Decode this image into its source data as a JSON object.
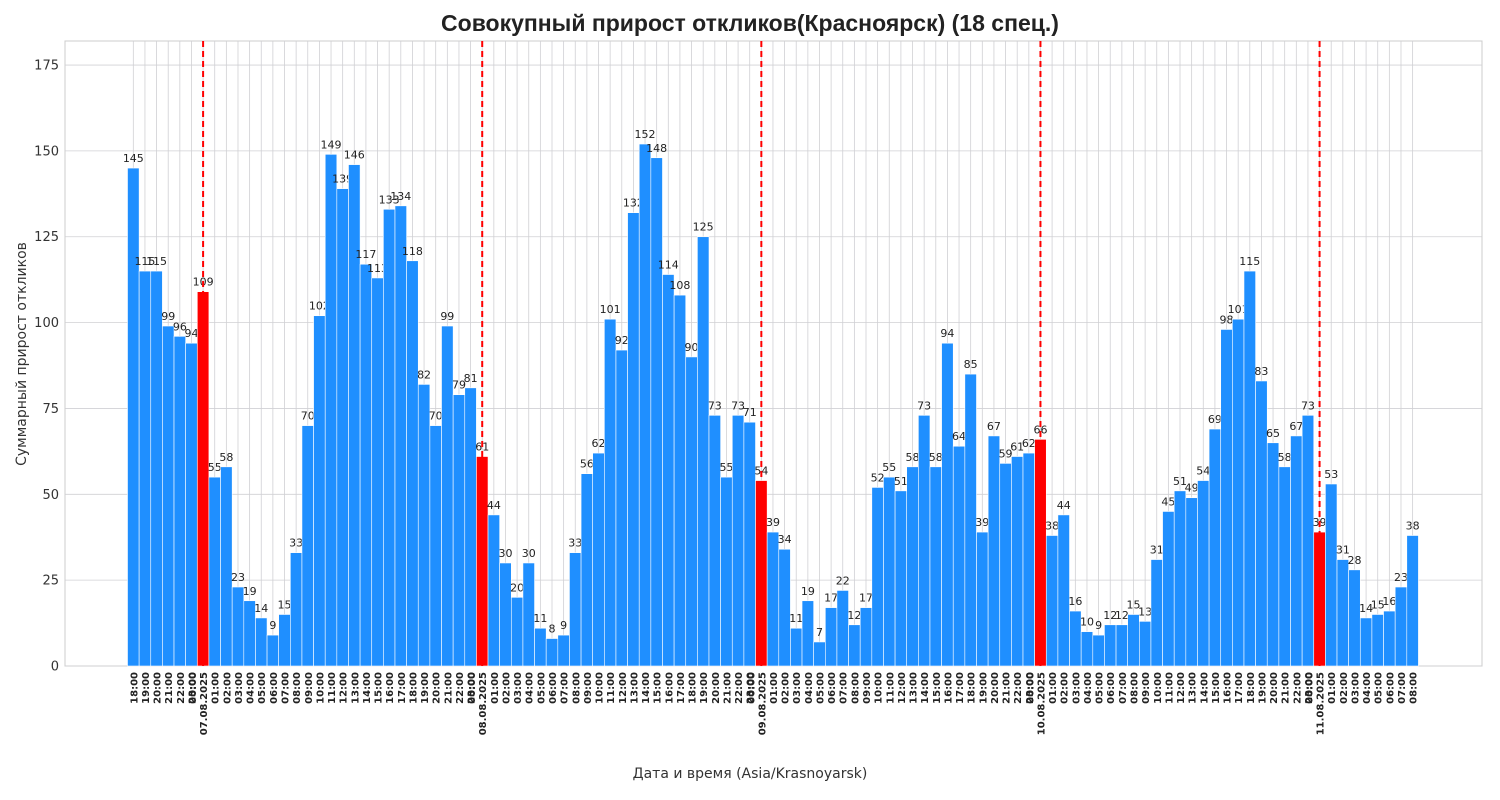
{
  "chart_data": {
    "type": "bar",
    "title": "Совокупный прирост откликов(Красноярск) (18 спец.)",
    "xlabel": "Дата и время (Asia/Krasnoyarsk)",
    "ylabel": "Суммарный прирост откликов",
    "ylim": [
      0,
      182
    ],
    "yticks": [
      0,
      25,
      50,
      75,
      100,
      125,
      150,
      175
    ],
    "grid": true,
    "colors": {
      "bar": "#1f8fff",
      "midnight_bar": "#ff0000",
      "day_line": "#ff0000",
      "grid": "#d0d0d4"
    },
    "categories": [
      "18:00",
      "19:00",
      "20:00",
      "21:00",
      "22:00",
      "23:00",
      "00:00\n07.08.2025",
      "01:00",
      "02:00",
      "03:00",
      "04:00",
      "05:00",
      "06:00",
      "07:00",
      "08:00",
      "09:00",
      "10:00",
      "11:00",
      "12:00",
      "13:00",
      "14:00",
      "15:00",
      "16:00",
      "17:00",
      "18:00",
      "19:00",
      "20:00",
      "21:00",
      "22:00",
      "23:00",
      "00:00\n08.08.2025",
      "01:00",
      "02:00",
      "03:00",
      "04:00",
      "05:00",
      "06:00",
      "07:00",
      "08:00",
      "09:00",
      "10:00",
      "11:00",
      "12:00",
      "13:00",
      "14:00",
      "15:00",
      "16:00",
      "17:00",
      "18:00",
      "19:00",
      "20:00",
      "21:00",
      "22:00",
      "23:00",
      "00:00\n09.08.2025",
      "01:00",
      "02:00",
      "03:00",
      "04:00",
      "05:00",
      "06:00",
      "07:00",
      "08:00",
      "09:00",
      "10:00",
      "11:00",
      "12:00",
      "13:00",
      "14:00",
      "15:00",
      "16:00",
      "17:00",
      "18:00",
      "19:00",
      "20:00",
      "21:00",
      "22:00",
      "23:00",
      "00:00\n10.08.2025",
      "01:00",
      "02:00",
      "03:00",
      "04:00",
      "05:00",
      "06:00",
      "07:00",
      "08:00",
      "09:00",
      "10:00",
      "11:00",
      "12:00",
      "13:00",
      "14:00",
      "15:00",
      "16:00",
      "17:00",
      "18:00",
      "19:00",
      "20:00",
      "21:00",
      "22:00",
      "23:00",
      "00:00\n11.08.2025",
      "01:00",
      "02:00",
      "03:00",
      "04:00",
      "05:00",
      "06:00",
      "07:00",
      "08:00"
    ],
    "values": [
      145,
      115,
      115,
      99,
      96,
      94,
      109,
      55,
      58,
      23,
      19,
      14,
      9,
      15,
      33,
      70,
      102,
      149,
      139,
      146,
      117,
      113,
      133,
      134,
      118,
      82,
      70,
      99,
      79,
      81,
      61,
      44,
      30,
      20,
      30,
      11,
      8,
      9,
      33,
      56,
      62,
      101,
      92,
      132,
      152,
      148,
      114,
      108,
      90,
      125,
      73,
      55,
      73,
      71,
      54,
      39,
      34,
      11,
      19,
      7,
      17,
      22,
      12,
      17,
      52,
      55,
      51,
      58,
      73,
      58,
      94,
      64,
      85,
      39,
      67,
      59,
      61,
      62,
      66,
      38,
      44,
      16,
      10,
      9,
      12,
      12,
      15,
      13,
      31,
      45,
      51,
      49,
      54,
      69,
      98,
      101,
      115,
      83,
      65,
      58,
      67,
      73,
      39,
      53,
      31,
      28,
      14,
      15,
      16,
      23,
      38
    ],
    "midnight_indices": [
      6,
      30,
      54,
      78,
      102
    ]
  }
}
